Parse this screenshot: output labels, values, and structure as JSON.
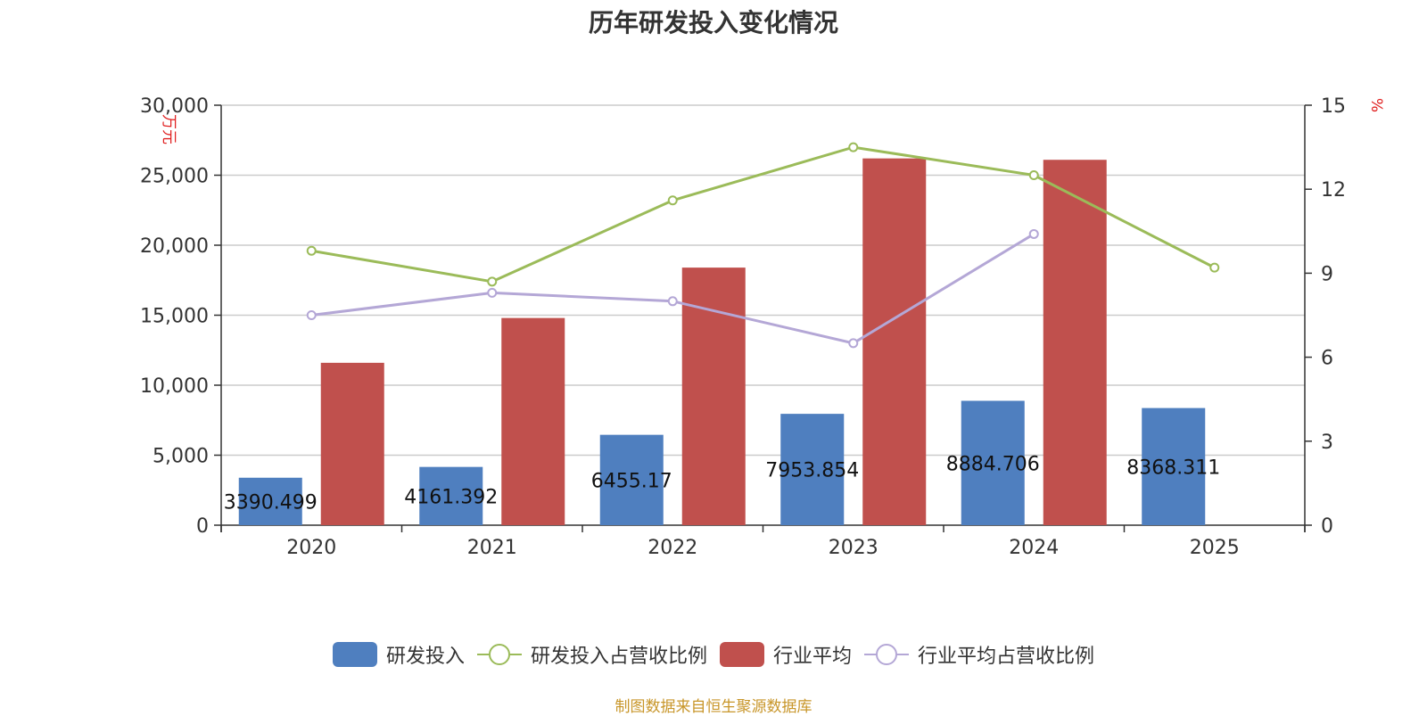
{
  "title": "历年研发投入变化情况",
  "source": "制图数据来自恒生聚源数据库",
  "colors": {
    "rd": "#4f7fbf",
    "rd_ratio": "#9bbb59",
    "industry": "#c0504d",
    "industry_ratio": "#b4a7d6",
    "unit": "#e02020",
    "axis": "#333333",
    "grid": "#cccccc"
  },
  "chart_data": {
    "type": "bar",
    "title": "历年研发投入变化情况",
    "categories": [
      "2020",
      "2021",
      "2022",
      "2023",
      "2024",
      "2025"
    ],
    "left_axis": {
      "unit": "万元",
      "ylim": [
        0,
        30000
      ],
      "ticks": [
        "0",
        "5,000",
        "10,000",
        "15,000",
        "20,000",
        "25,000",
        "30,000"
      ],
      "tick_values": [
        0,
        5000,
        10000,
        15000,
        20000,
        25000,
        30000
      ]
    },
    "right_axis": {
      "unit": "%",
      "ylim": [
        0,
        15
      ],
      "ticks": [
        "0",
        "3",
        "6",
        "9",
        "12",
        "15"
      ],
      "tick_values": [
        0,
        3,
        6,
        9,
        12,
        15
      ]
    },
    "grid": true,
    "legend_position": "bottom",
    "series": [
      {
        "name": "研发投入",
        "type": "bar",
        "axis": "left",
        "values": [
          3390.499,
          4161.392,
          6455.17,
          7953.854,
          8884.706,
          8368.311
        ],
        "labels": [
          "3390.499",
          "4161.392",
          "6455.17",
          "7953.854",
          "8884.706",
          "8368.311"
        ]
      },
      {
        "name": "研发投入占营收比例",
        "type": "line",
        "axis": "right",
        "values": [
          9.8,
          8.7,
          11.6,
          13.5,
          12.5,
          9.2
        ]
      },
      {
        "name": "行业平均",
        "type": "bar",
        "axis": "left",
        "values": [
          11600,
          14800,
          18400,
          26200,
          26100,
          null
        ]
      },
      {
        "name": "行业平均占营收比例",
        "type": "line",
        "axis": "right",
        "values": [
          7.5,
          8.3,
          8.0,
          6.5,
          10.4,
          null
        ]
      }
    ]
  }
}
